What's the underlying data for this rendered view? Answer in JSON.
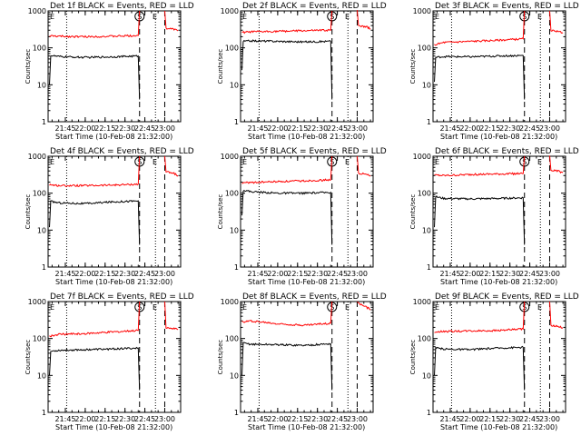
{
  "chart_data": [
    {
      "type": "line",
      "title": "Det 1f BLACK = Events, RED = LLD",
      "xlabel": "Start Time (10-Feb-08 21:32:00)",
      "ylabel": "Counts/sec",
      "xticks": [
        "21:45",
        "22:00",
        "22:15",
        "22:30",
        "22:45",
        "23:00"
      ],
      "yticks": [
        "1",
        "10",
        "100",
        "1000"
      ],
      "ylim": [
        1,
        1000
      ],
      "y_scale": "log",
      "xlim": [
        "21:32",
        "23:12"
      ],
      "markers": {
        "circle": "S",
        "E": "E"
      },
      "series": [
        {
          "color": "#ff0000",
          "segments": [
            [
              [
                "21:33",
                210
              ],
              [
                "21:40",
                205
              ],
              [
                "22:00",
                200
              ],
              [
                "22:20",
                205
              ],
              [
                "22:40",
                215
              ],
              [
                "22:41",
                1000
              ]
            ],
            [
              [
                "23:00",
                1000
              ],
              [
                "23:01",
                340
              ],
              [
                "23:07",
                320
              ],
              [
                "23:10",
                290
              ]
            ]
          ]
        },
        {
          "color": "#000000",
          "segments": [
            [
              [
                "21:33",
                10
              ],
              [
                "21:34",
                62
              ],
              [
                "21:40",
                58
              ],
              [
                "22:00",
                55
              ],
              [
                "22:20",
                57
              ],
              [
                "22:40",
                60
              ],
              [
                "22:41",
                4
              ]
            ]
          ]
        }
      ]
    },
    {
      "type": "line",
      "title": "Det 2f BLACK = Events, RED = LLD",
      "xlabel": "Start Time (10-Feb-08 21:32:00)",
      "ylabel": "Counts/sec",
      "xticks": [
        "21:45",
        "22:00",
        "22:15",
        "22:30",
        "22:45",
        "23:00"
      ],
      "yticks": [
        "1",
        "10",
        "100",
        "1000"
      ],
      "ylim": [
        1,
        1000
      ],
      "y_scale": "log",
      "xlim": [
        "21:32",
        "23:12"
      ],
      "markers": {
        "circle": "S",
        "E": "E"
      },
      "series": [
        {
          "color": "#ff0000",
          "segments": [
            [
              [
                "21:33",
                260
              ],
              [
                "21:40",
                270
              ],
              [
                "22:00",
                280
              ],
              [
                "22:20",
                290
              ],
              [
                "22:40",
                300
              ],
              [
                "22:41",
                1000
              ]
            ],
            [
              [
                "23:00",
                1000
              ],
              [
                "23:01",
                400
              ],
              [
                "23:07",
                370
              ],
              [
                "23:10",
                330
              ]
            ]
          ]
        },
        {
          "color": "#000000",
          "segments": [
            [
              [
                "21:33",
                25
              ],
              [
                "21:34",
                150
              ],
              [
                "21:40",
                155
              ],
              [
                "22:00",
                150
              ],
              [
                "22:20",
                145
              ],
              [
                "22:40",
                150
              ],
              [
                "22:41",
                4
              ]
            ]
          ]
        }
      ]
    },
    {
      "type": "line",
      "title": "Det 3f BLACK = Events, RED = LLD",
      "xlabel": "Start Time (10-Feb-08 21:32:00)",
      "ylabel": "Counts/sec",
      "xticks": [
        "21:45",
        "22:00",
        "22:15",
        "22:30",
        "22:45",
        "23:00"
      ],
      "yticks": [
        "1",
        "10",
        "100",
        "1000"
      ],
      "ylim": [
        1,
        1000
      ],
      "y_scale": "log",
      "xlim": [
        "21:32",
        "23:12"
      ],
      "markers": {
        "circle": "S",
        "E": "E"
      },
      "series": [
        {
          "color": "#ff0000",
          "segments": [
            [
              [
                "21:33",
                120
              ],
              [
                "21:40",
                140
              ],
              [
                "22:00",
                150
              ],
              [
                "22:20",
                160
              ],
              [
                "22:40",
                175
              ],
              [
                "22:41",
                1000
              ]
            ],
            [
              [
                "23:00",
                1000
              ],
              [
                "23:01",
                300
              ],
              [
                "23:07",
                280
              ],
              [
                "23:10",
                250
              ]
            ]
          ]
        },
        {
          "color": "#000000",
          "segments": [
            [
              [
                "21:33",
                12
              ],
              [
                "21:34",
                55
              ],
              [
                "21:40",
                58
              ],
              [
                "22:00",
                57
              ],
              [
                "22:20",
                60
              ],
              [
                "22:40",
                62
              ],
              [
                "22:41",
                4
              ]
            ]
          ]
        }
      ]
    },
    {
      "type": "line",
      "title": "Det 4f BLACK = Events, RED = LLD",
      "xlabel": "Start Time (10-Feb-08 21:32:00)",
      "ylabel": "Counts/sec",
      "xticks": [
        "21:45",
        "22:00",
        "22:15",
        "22:30",
        "22:45",
        "23:00"
      ],
      "yticks": [
        "1",
        "10",
        "100",
        "1000"
      ],
      "ylim": [
        1,
        1000
      ],
      "y_scale": "log",
      "xlim": [
        "21:32",
        "23:12"
      ],
      "markers": {
        "circle": "S",
        "E": "E"
      },
      "series": [
        {
          "color": "#ff0000",
          "segments": [
            [
              [
                "21:33",
                170
              ],
              [
                "21:40",
                160
              ],
              [
                "22:00",
                160
              ],
              [
                "22:20",
                165
              ],
              [
                "22:40",
                175
              ],
              [
                "22:41",
                1000
              ]
            ],
            [
              [
                "23:00",
                1000
              ],
              [
                "23:01",
                380
              ],
              [
                "23:07",
                340
              ],
              [
                "23:10",
                300
              ]
            ]
          ]
        },
        {
          "color": "#000000",
          "segments": [
            [
              [
                "21:33",
                12
              ],
              [
                "21:34",
                60
              ],
              [
                "21:40",
                55
              ],
              [
                "22:00",
                52
              ],
              [
                "22:20",
                58
              ],
              [
                "22:40",
                62
              ],
              [
                "22:41",
                4
              ]
            ]
          ]
        }
      ]
    },
    {
      "type": "line",
      "title": "Det 5f BLACK = Events, RED = LLD",
      "xlabel": "Start Time (10-Feb-08 21:32:00)",
      "ylabel": "Counts/sec",
      "xticks": [
        "21:45",
        "22:00",
        "22:15",
        "22:30",
        "22:45",
        "23:00"
      ],
      "yticks": [
        "1",
        "10",
        "100",
        "1000"
      ],
      "ylim": [
        1,
        1000
      ],
      "y_scale": "log",
      "xlim": [
        "21:32",
        "23:12"
      ],
      "markers": {
        "circle": "S",
        "E": "E"
      },
      "series": [
        {
          "color": "#ff0000",
          "segments": [
            [
              [
                "21:33",
                190
              ],
              [
                "21:40",
                195
              ],
              [
                "22:00",
                205
              ],
              [
                "22:20",
                215
              ],
              [
                "22:40",
                230
              ],
              [
                "22:41",
                1000
              ]
            ],
            [
              [
                "23:00",
                1000
              ],
              [
                "23:01",
                350
              ],
              [
                "23:07",
                320
              ],
              [
                "23:10",
                290
              ]
            ]
          ]
        },
        {
          "color": "#000000",
          "segments": [
            [
              [
                "21:33",
                25
              ],
              [
                "21:34",
                120
              ],
              [
                "21:40",
                110
              ],
              [
                "22:00",
                100
              ],
              [
                "22:20",
                100
              ],
              [
                "22:40",
                105
              ],
              [
                "22:41",
                4
              ]
            ]
          ]
        }
      ]
    },
    {
      "type": "line",
      "title": "Det 6f BLACK = Events, RED = LLD",
      "xlabel": "Start Time (10-Feb-08 21:32:00)",
      "ylabel": "Counts/sec",
      "xticks": [
        "21:45",
        "22:00",
        "22:15",
        "22:30",
        "22:45",
        "23:00"
      ],
      "yticks": [
        "1",
        "10",
        "100",
        "1000"
      ],
      "ylim": [
        1,
        1000
      ],
      "y_scale": "log",
      "xlim": [
        "21:32",
        "23:12"
      ],
      "markers": {
        "circle": "S",
        "E": "E"
      },
      "series": [
        {
          "color": "#ff0000",
          "segments": [
            [
              [
                "21:33",
                310
              ],
              [
                "21:40",
                300
              ],
              [
                "22:00",
                320
              ],
              [
                "22:20",
                330
              ],
              [
                "22:40",
                340
              ],
              [
                "22:41",
                1000
              ]
            ],
            [
              [
                "23:00",
                1000
              ],
              [
                "23:01",
                420
              ],
              [
                "23:07",
                390
              ],
              [
                "23:10",
                360
              ]
            ]
          ]
        },
        {
          "color": "#000000",
          "segments": [
            [
              [
                "21:33",
                12
              ],
              [
                "21:34",
                80
              ],
              [
                "21:40",
                72
              ],
              [
                "22:00",
                70
              ],
              [
                "22:20",
                72
              ],
              [
                "22:40",
                75
              ],
              [
                "22:41",
                4
              ]
            ]
          ]
        }
      ]
    },
    {
      "type": "line",
      "title": "Det 7f BLACK = Events, RED = LLD",
      "xlabel": "Start Time (10-Feb-08 21:32:00)",
      "ylabel": "Counts/sec",
      "xticks": [
        "21:45",
        "22:00",
        "22:15",
        "22:30",
        "22:45",
        "23:00"
      ],
      "yticks": [
        "1",
        "10",
        "100",
        "1000"
      ],
      "ylim": [
        1,
        1000
      ],
      "y_scale": "log",
      "xlim": [
        "21:32",
        "23:12"
      ],
      "markers": {
        "circle": "S",
        "E": "E"
      },
      "series": [
        {
          "color": "#ff0000",
          "segments": [
            [
              [
                "21:33",
                115
              ],
              [
                "21:40",
                130
              ],
              [
                "22:00",
                135
              ],
              [
                "22:20",
                150
              ],
              [
                "22:40",
                165
              ],
              [
                "22:41",
                1000
              ]
            ],
            [
              [
                "23:00",
                1000
              ],
              [
                "23:01",
                200
              ],
              [
                "23:07",
                185
              ],
              [
                "23:10",
                175
              ]
            ]
          ]
        },
        {
          "color": "#000000",
          "segments": [
            [
              [
                "21:33",
                10
              ],
              [
                "21:34",
                45
              ],
              [
                "21:40",
                48
              ],
              [
                "22:00",
                50
              ],
              [
                "22:20",
                52
              ],
              [
                "22:40",
                55
              ],
              [
                "22:41",
                4
              ]
            ]
          ]
        }
      ]
    },
    {
      "type": "line",
      "title": "Det 8f BLACK = Events, RED = LLD",
      "xlabel": "Start Time (10-Feb-08 21:32:00)",
      "ylabel": "Counts/sec",
      "xticks": [
        "21:45",
        "22:00",
        "22:15",
        "22:30",
        "22:45",
        "23:00"
      ],
      "yticks": [
        "1",
        "10",
        "100",
        "1000"
      ],
      "ylim": [
        1,
        1000
      ],
      "y_scale": "log",
      "xlim": [
        "21:32",
        "23:12"
      ],
      "markers": {
        "circle": "S",
        "E": "E"
      },
      "series": [
        {
          "color": "#ff0000",
          "segments": [
            [
              [
                "21:33",
                280
              ],
              [
                "21:40",
                300
              ],
              [
                "22:00",
                250
              ],
              [
                "22:20",
                230
              ],
              [
                "22:40",
                260
              ],
              [
                "22:41",
                1000
              ]
            ],
            [
              [
                "23:00",
                1000
              ],
              [
                "23:01",
                900
              ],
              [
                "23:07",
                700
              ],
              [
                "23:10",
                600
              ]
            ]
          ]
        },
        {
          "color": "#000000",
          "segments": [
            [
              [
                "21:33",
                10
              ],
              [
                "21:34",
                75
              ],
              [
                "21:40",
                70
              ],
              [
                "22:00",
                68
              ],
              [
                "22:20",
                65
              ],
              [
                "22:40",
                72
              ],
              [
                "22:41",
                4
              ]
            ]
          ]
        }
      ]
    },
    {
      "type": "line",
      "title": "Det 9f BLACK = Events, RED = LLD",
      "xlabel": "Start Time (10-Feb-08 21:32:00)",
      "ylabel": "Counts/sec",
      "xticks": [
        "21:45",
        "22:00",
        "22:15",
        "22:30",
        "22:45",
        "23:00"
      ],
      "yticks": [
        "1",
        "10",
        "100",
        "1000"
      ],
      "ylim": [
        1,
        1000
      ],
      "y_scale": "log",
      "xlim": [
        "21:32",
        "23:12"
      ],
      "markers": {
        "circle": "S",
        "E": "E"
      },
      "series": [
        {
          "color": "#ff0000",
          "segments": [
            [
              [
                "21:33",
                150
              ],
              [
                "21:40",
                155
              ],
              [
                "22:00",
                160
              ],
              [
                "22:20",
                165
              ],
              [
                "22:40",
                180
              ],
              [
                "22:41",
                1000
              ]
            ],
            [
              [
                "23:00",
                1000
              ],
              [
                "23:01",
                230
              ],
              [
                "23:07",
                210
              ],
              [
                "23:10",
                190
              ]
            ]
          ]
        },
        {
          "color": "#000000",
          "segments": [
            [
              [
                "21:33",
                10
              ],
              [
                "21:34",
                55
              ],
              [
                "21:40",
                52
              ],
              [
                "22:00",
                50
              ],
              [
                "22:20",
                55
              ],
              [
                "22:40",
                58
              ],
              [
                "22:41",
                4
              ]
            ]
          ]
        }
      ]
    }
  ]
}
